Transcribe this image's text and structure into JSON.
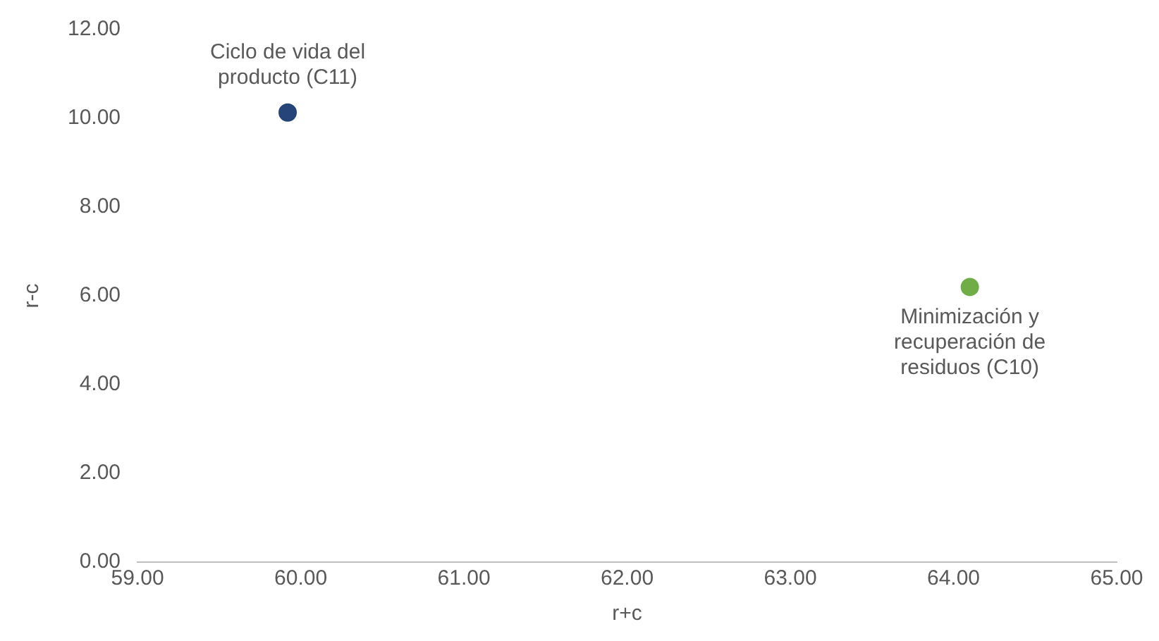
{
  "chart_data": {
    "type": "scatter",
    "xlabel": "r+c",
    "ylabel": "r-c",
    "series": [
      {
        "color": "#264478",
        "x": [
          59.92
        ],
        "values": [
          10.13
        ]
      },
      {
        "color": "#70ad47",
        "x": [
          64.1
        ],
        "values": [
          6.2
        ]
      }
    ],
    "annotations": [
      {
        "text": "Ciclo de vida del producto (C11)",
        "x": 59.92,
        "y": 10.13
      },
      {
        "text": "Minimización y recuperación de residuos (C10)",
        "x": 64.1,
        "y": 6.2
      }
    ],
    "xlim": [
      59,
      65
    ],
    "xticks": [
      {
        "value": 59,
        "label": "59.00"
      },
      {
        "value": 60,
        "label": "60.00"
      },
      {
        "value": 61,
        "label": "61.00"
      },
      {
        "value": 62,
        "label": "62.00"
      },
      {
        "value": 63,
        "label": "63.00"
      },
      {
        "value": 64,
        "label": "64.00"
      },
      {
        "value": 65,
        "label": "65.00"
      }
    ],
    "ylim": [
      0,
      12
    ],
    "yticks": [
      {
        "value": 0,
        "label": "0.00"
      },
      {
        "value": 2,
        "label": "2.00"
      },
      {
        "value": 4,
        "label": "4.00"
      },
      {
        "value": 6,
        "label": "6.00"
      },
      {
        "value": 8,
        "label": "8.00"
      },
      {
        "value": 10,
        "label": "10.00"
      },
      {
        "value": 12,
        "label": "12.00"
      }
    ],
    "grid": false,
    "legend": false,
    "marker": "circle"
  }
}
